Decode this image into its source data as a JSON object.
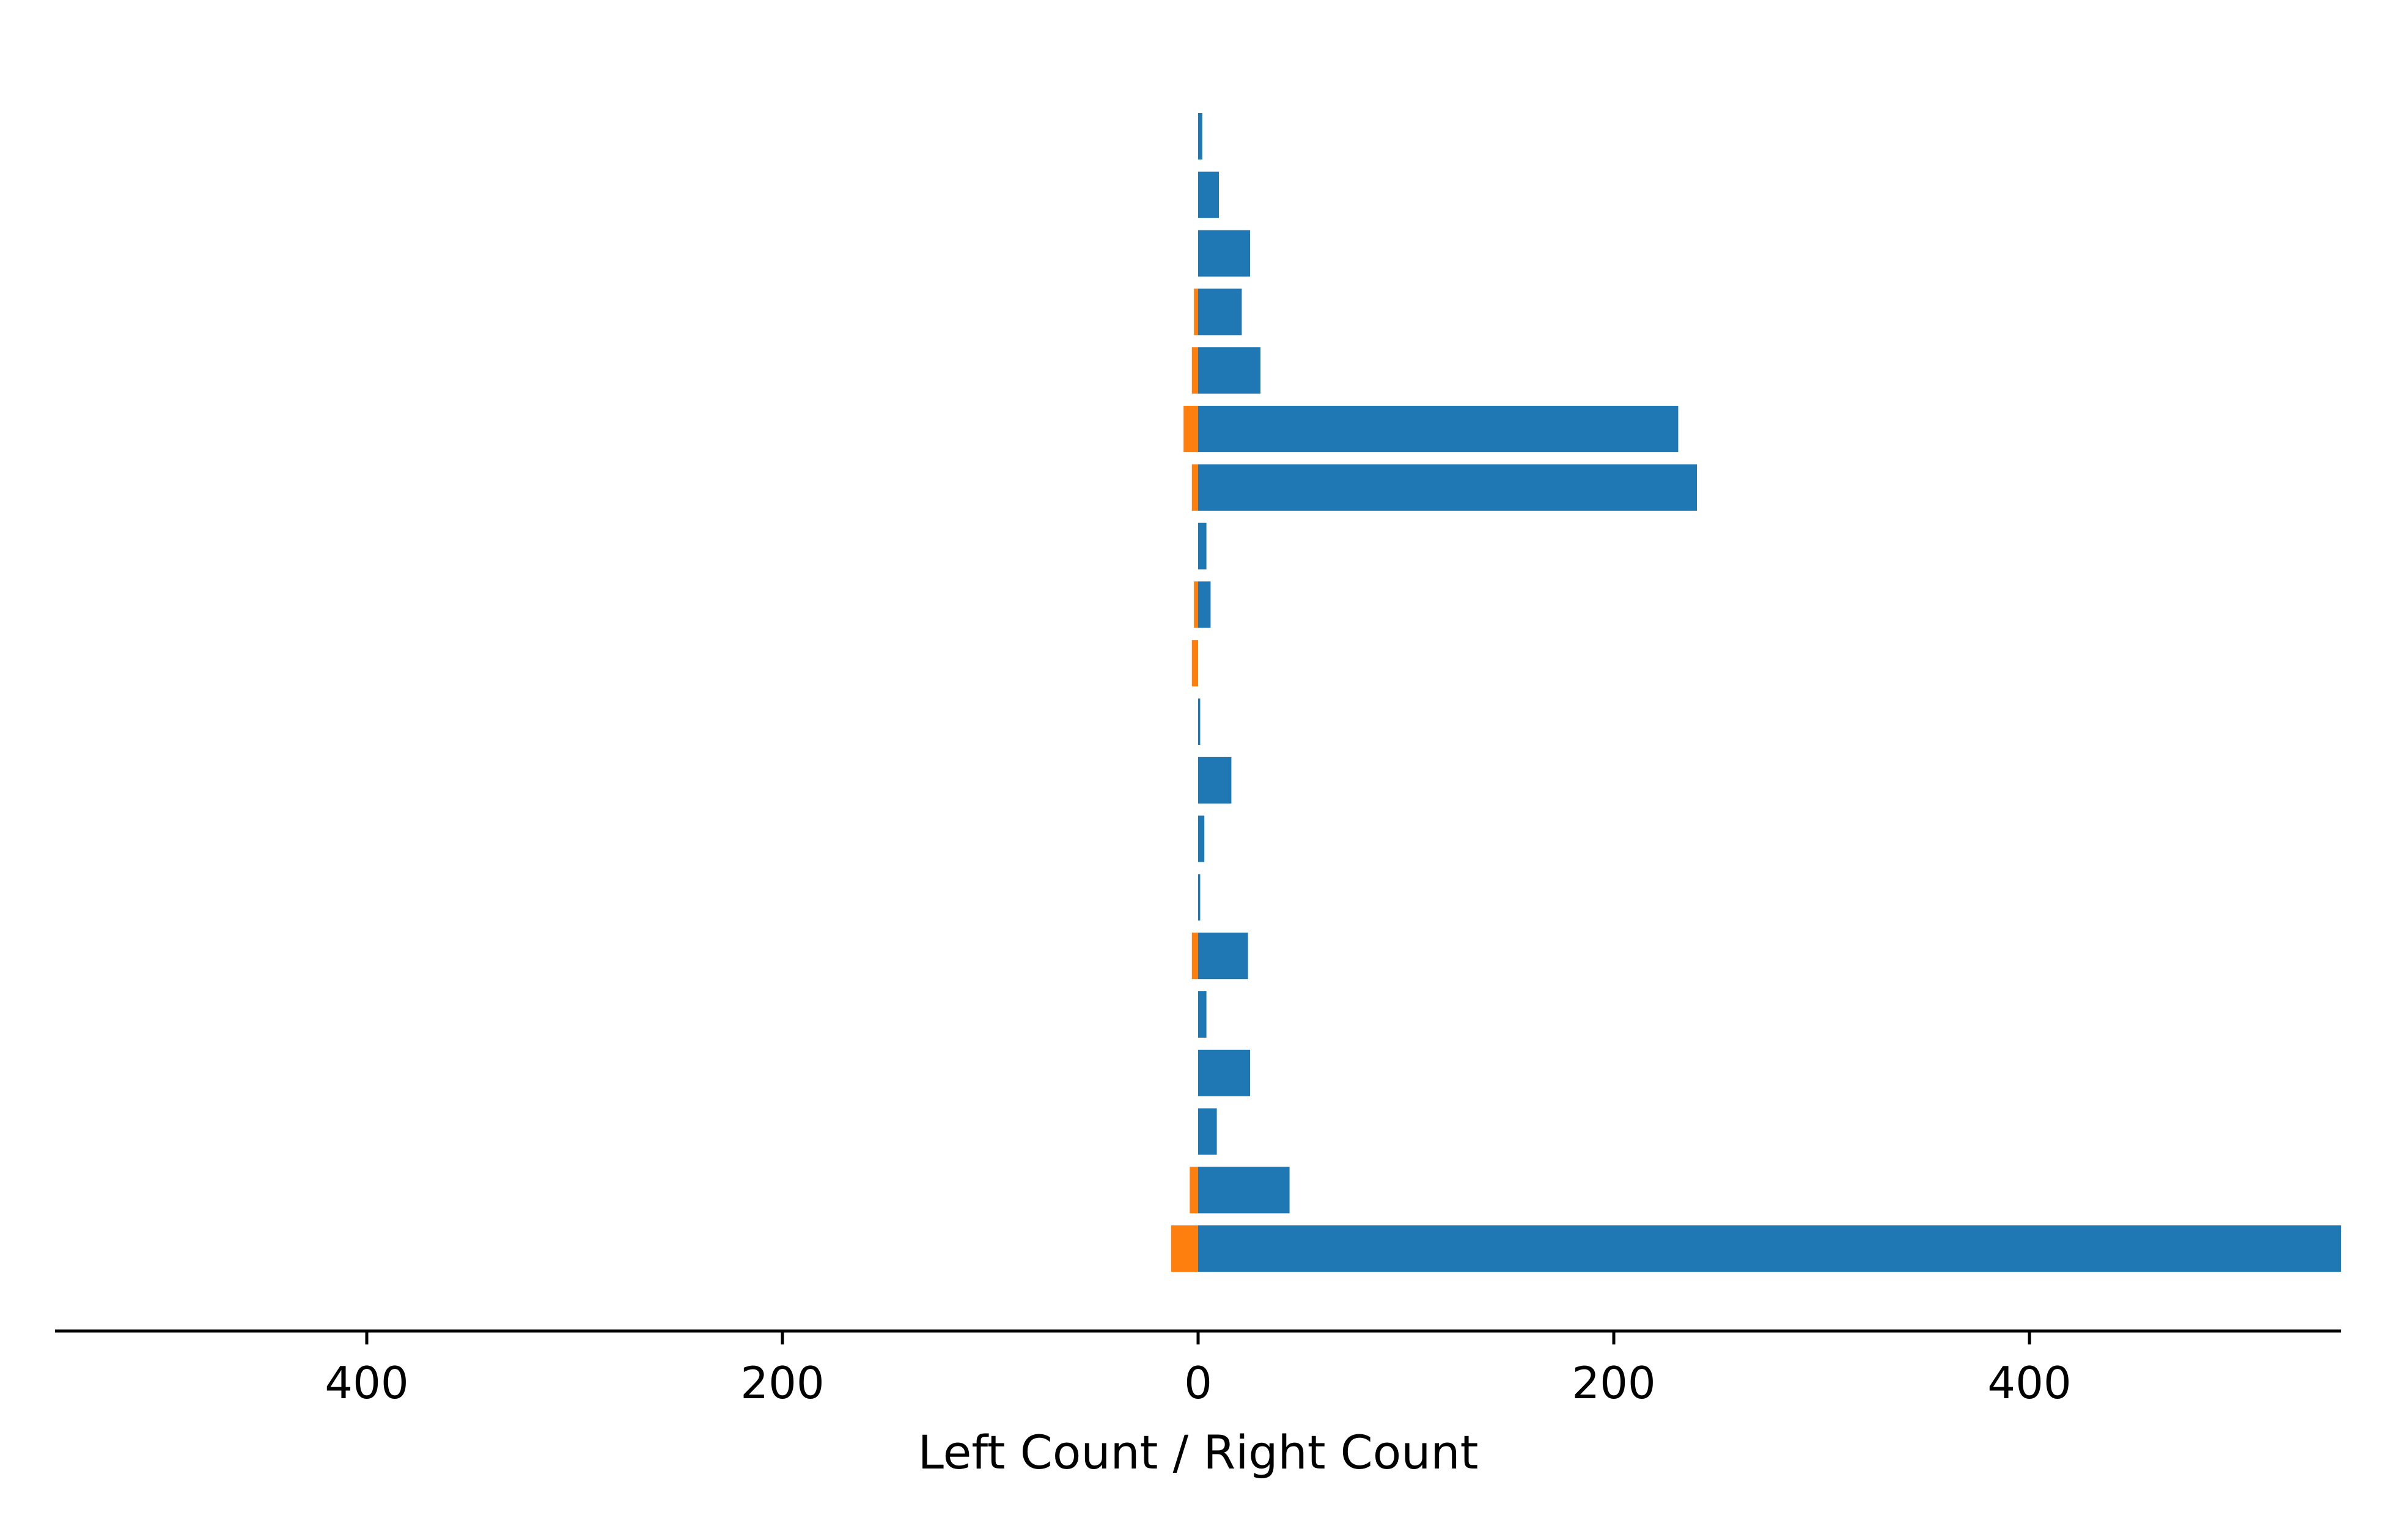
{
  "chart_data": {
    "type": "bar",
    "orientation": "horizontal",
    "layout": "diverging",
    "xlabel": "Left Count / Right Count",
    "xlim": [
      -550,
      550
    ],
    "ticks": [
      {
        "value": -400,
        "label": "400"
      },
      {
        "value": -200,
        "label": "200"
      },
      {
        "value": 0,
        "label": "0"
      },
      {
        "value": 200,
        "label": "200"
      },
      {
        "value": 400,
        "label": "400"
      }
    ],
    "grid": false,
    "legend": "none",
    "colors": {
      "left": "#ff7f0e",
      "right": "#1f77b4",
      "axis": "#000000"
    },
    "series": [
      {
        "side": "left",
        "values": [
          0,
          0,
          0,
          2,
          3,
          7,
          3,
          0,
          2,
          3,
          0,
          0,
          0,
          0,
          3,
          0,
          0,
          0,
          4,
          13
        ]
      },
      {
        "side": "right",
        "values": [
          2,
          10,
          25,
          21,
          30,
          231,
          240,
          4,
          6,
          0,
          1,
          16,
          3,
          1,
          24,
          4,
          25,
          9,
          44,
          550
        ]
      }
    ]
  }
}
